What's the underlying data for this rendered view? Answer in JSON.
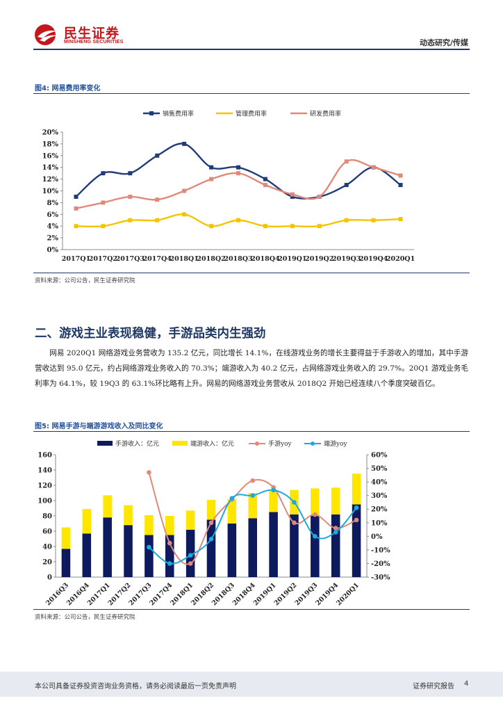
{
  "header": {
    "logo_name": "民生证券",
    "logo_sub": "MINSHENG SECURITIES",
    "category": "动态研究/传媒"
  },
  "figure4": {
    "title": "图4: 网易费用率变化",
    "source": "资料来源：公司公告，民生证券研究院"
  },
  "section2": {
    "heading": "二、游戏主业表现稳健，手游品类内生强劲",
    "paragraph": "网易 2020Q1 网络游戏业务营收为 135.2 亿元，同比增长 14.1%，在线游戏业务的增长主要得益于手游收入的增加，其中手游营收达到 95.0 亿元，约占网络游戏业务收入的 70.3%；端游收入为 40.2 亿元，占网络游戏业务收入的 29.7%。20Q1 游戏业务毛利率为 64.1%，较 19Q3 的 63.1%环比略有上升。网易的网络游戏业务营收从 2018Q2 开始已经连续八个季度突破百亿。"
  },
  "figure5": {
    "title": "图5: 网易手游与端游游戏收入及同比变化",
    "source": "资料来源：公司公告，民生证券研究院"
  },
  "footer": {
    "disclaimer": "本公司具备证券投资咨询业务资格，请务必阅读最后一页免责声明",
    "report_type": "证券研究报告",
    "page_number": "4"
  },
  "chart_data": [
    {
      "type": "line",
      "title": "网易费用率变化",
      "categories": [
        "2017Q1",
        "2017Q2",
        "2017Q3",
        "2017Q4",
        "2018Q1",
        "2018Q2",
        "2018Q3",
        "2018Q4",
        "2019Q1",
        "2019Q2",
        "2019Q3",
        "2019Q4",
        "2020Q1"
      ],
      "ylim": [
        0,
        20
      ],
      "yticks": [
        "0%",
        "2%",
        "4%",
        "6%",
        "8%",
        "10%",
        "12%",
        "14%",
        "16%",
        "18%",
        "20%"
      ],
      "legend_position": "top",
      "series": [
        {
          "name": "销售费用率",
          "color": "#1f3c78",
          "values": [
            9,
            13,
            13,
            16,
            18,
            14,
            14,
            12,
            9,
            9,
            11,
            14,
            11
          ]
        },
        {
          "name": "管理费用率",
          "color": "#f5c400",
          "values": [
            4,
            4,
            5,
            5,
            6,
            4,
            5,
            4,
            4,
            4,
            5,
            5,
            5.2
          ]
        },
        {
          "name": "研发费用率",
          "color": "#e0897a",
          "values": [
            7,
            8,
            9,
            8.5,
            10,
            12,
            13,
            11,
            9.4,
            9,
            15,
            14,
            12.6
          ]
        }
      ]
    },
    {
      "type": "bar",
      "title": "网易手游与端游游戏收入及同比变化",
      "categories": [
        "2016Q3",
        "2016Q4",
        "2017Q1",
        "2017Q2",
        "2017Q3",
        "2017Q4",
        "2018Q1",
        "2018Q2",
        "2018Q3",
        "2018Q4",
        "2019Q1",
        "2019Q2",
        "2019Q3",
        "2019Q4",
        "2020Q1"
      ],
      "ylim": [
        0,
        160
      ],
      "yticks": [
        "0",
        "20",
        "40",
        "60",
        "80",
        "100",
        "120",
        "140",
        "160"
      ],
      "y2lim": [
        -30,
        60
      ],
      "y2ticks": [
        "-30%",
        "-20%",
        "-10%",
        "0%",
        "10%",
        "20%",
        "30%",
        "40%",
        "50%",
        "60%"
      ],
      "legend_position": "top",
      "bar_series": [
        {
          "name": "手游收入：亿元",
          "color": "#0d1a5e",
          "values": [
            37,
            57,
            78,
            68,
            55,
            55,
            62,
            75,
            70,
            77,
            85,
            82,
            80,
            82,
            95
          ]
        },
        {
          "name": "端游收入：亿元",
          "color": "#ffe600",
          "values": [
            28,
            32,
            29,
            26,
            26,
            25,
            25,
            26,
            32,
            33,
            29,
            32,
            36,
            35,
            40.2
          ]
        }
      ],
      "line_series": [
        {
          "name": "手游yoy",
          "color": "#e0897a",
          "start_index": 4,
          "values": [
            47,
            -5,
            -20,
            10,
            27,
            41,
            36,
            10,
            16,
            6,
            12
          ]
        },
        {
          "name": "端游yoy",
          "color": "#1ba9e0",
          "start_index": 4,
          "values": [
            -8,
            -20,
            -14,
            -2,
            28,
            30,
            34,
            25,
            0,
            3,
            21
          ]
        }
      ]
    }
  ]
}
